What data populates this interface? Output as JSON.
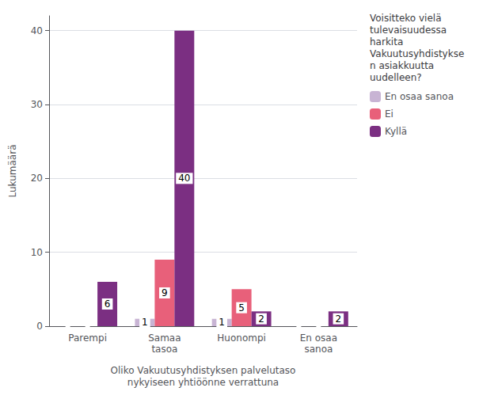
{
  "chart_data": {
    "type": "bar",
    "categories": [
      "Parempi",
      "Samaa\ntasoa",
      "Huonompi",
      "En osaa\nsanoa"
    ],
    "series": [
      {
        "name": "En osaa sanoa",
        "color": "#c8b4d4",
        "values": [
          0,
          1,
          1,
          0
        ],
        "value_labels": [
          null,
          "1",
          "1",
          null
        ]
      },
      {
        "name": "Ei",
        "color": "#e8607a",
        "values": [
          0,
          9,
          5,
          0
        ],
        "value_labels": [
          null,
          "9",
          "5",
          null
        ]
      },
      {
        "name": "Kyllä",
        "color": "#7b2f82",
        "values": [
          6,
          40,
          2,
          2
        ],
        "value_labels": [
          "6",
          "40",
          "2",
          "2"
        ]
      }
    ],
    "xlabel": "Oliko Vakuutusyhdistyksen palvelutaso\nnykyiseen yhtiöönne verrattuna",
    "ylabel": "Lukumäärä",
    "legend_title": "Voisitteko vielä\ntulevaisuudessa\nharkita\nVakuutusyhdistykse\nn asiakkuutta\nuudelleen?",
    "ylim": [
      0,
      42
    ],
    "yticks": [
      0,
      10,
      20,
      30,
      40
    ],
    "grid": true,
    "legend": "right",
    "data_labels": true
  }
}
